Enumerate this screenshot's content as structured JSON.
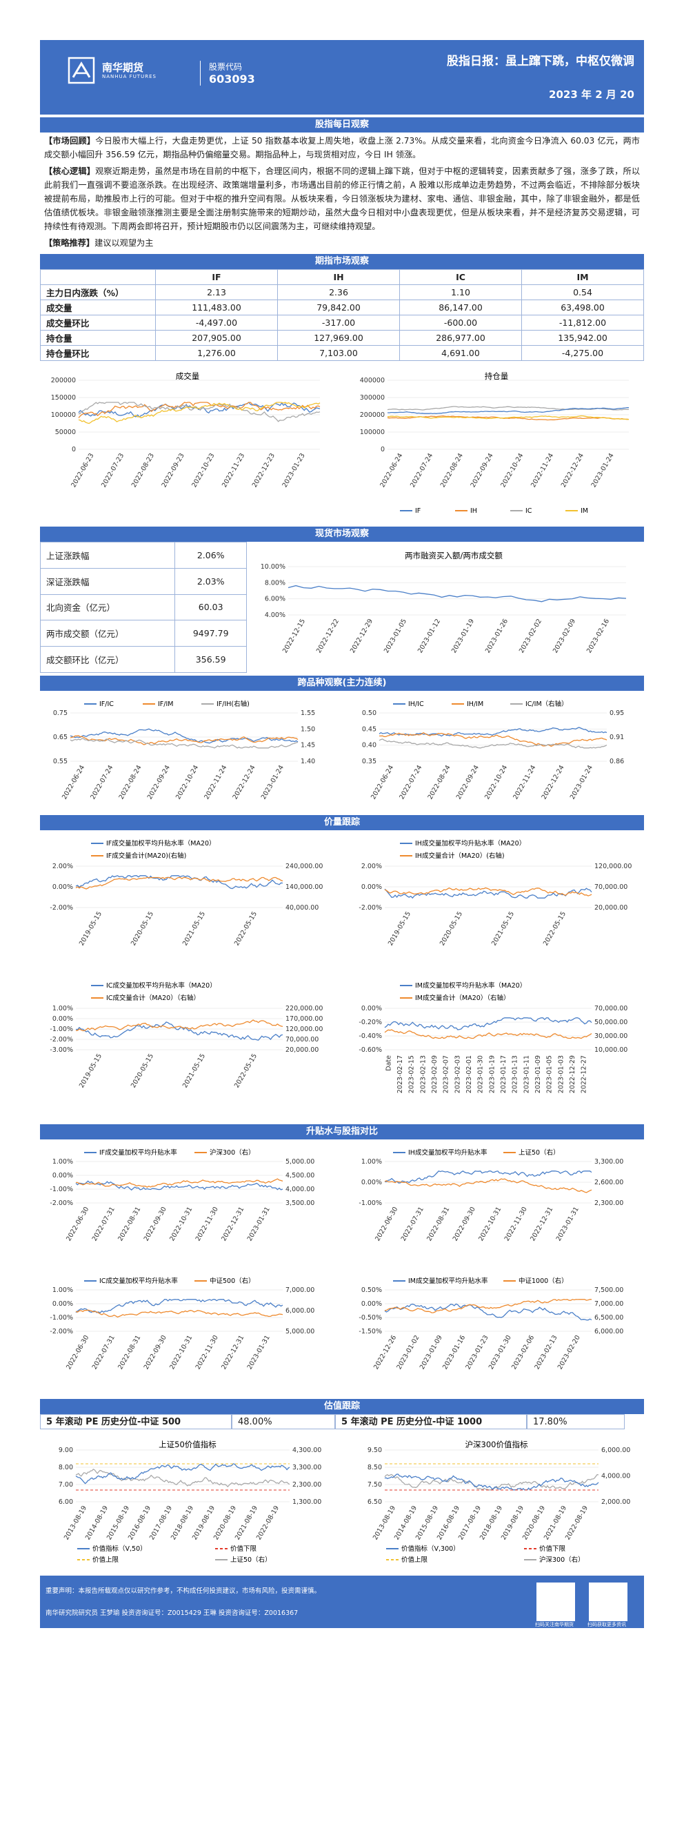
{
  "header": {
    "brand_cn": "南华期货",
    "brand_en": "NANHUA FUTURES",
    "code_label": "股票代码",
    "code_value": "603093",
    "title": "股指日报：虽上蹿下跳，中枢仅微调",
    "date": "2023 年 2 月 20"
  },
  "sections": {
    "daily": "股指每日观察",
    "futures": "期指市场观察",
    "spot": "现货市场观察",
    "variety": "跨品种观察(主力连续)",
    "volprice": "价量跟踪",
    "basis": "升贴水与股指对比",
    "valuation": "估值跟踪"
  },
  "text": {
    "review_tag": "【市场回顾】",
    "review": "今日股市大幅上行，大盘走势更优，上证 50 指数基本收复上周失地，收盘上涨 2.73%。从成交量来看，北向资金今日净流入 60.03 亿元，两市成交额小幅回升 356.59 亿元，期指品种仍偏缩量交易。期指品种上，与现货相对应，今日 IH 领涨。",
    "logic_tag": "【核心逻辑】",
    "logic": "观察近期走势，虽然是市场在目前的中枢下，合理区间内，根据不同的逻辑上蹿下跳，但对于中枢的逻辑转变，因素贡献多了强，涨多了跌，所以此前我们一直强调不要追涨杀跌。在出现经济、政策端增量利多，市场遇出目前的修正行情之前，A 股难以形成单边走势趋势，不过两会临近，不排除部分板块被提前布局，助推股市上行的可能。但对于中枢的推升空间有限。从板块来看，今日领涨板块为建材、家电、通信、非银金融，其中，除了非银金融外，都是低估值绩优板块。非银金融领涨推测主要是全面注册制实施带来的短期炒动，虽然大盘今日相对中小盘表现更优，但是从板块来看，并不是经济复苏交易逻辑，可持续性有待观测。下周两会即将召开，预计短期股市仍以区间震荡为主，可继续维持观望。",
    "strategy_tag": "【策略推荐】",
    "strategy": "建议以观望为主"
  },
  "futures_table": {
    "headers": [
      "",
      "IF",
      "IH",
      "IC",
      "IM"
    ],
    "rows": [
      {
        "label": "主力日内涨跌（%）",
        "v": [
          "2.13",
          "2.36",
          "1.10",
          "0.54"
        ]
      },
      {
        "label": "成交量",
        "v": [
          "111,483.00",
          "79,842.00",
          "86,147.00",
          "63,498.00"
        ]
      },
      {
        "label": "成交量环比",
        "v": [
          "-4,497.00",
          "-317.00",
          "-600.00",
          "-11,812.00"
        ]
      },
      {
        "label": "持仓量",
        "v": [
          "207,905.00",
          "127,969.00",
          "286,977.00",
          "135,942.00"
        ]
      },
      {
        "label": "持仓量环比",
        "v": [
          "1,276.00",
          "7,103.00",
          "4,691.00",
          "-4,275.00"
        ]
      }
    ]
  },
  "spot_table": [
    {
      "label": "上证涨跌幅",
      "value": "2.06%"
    },
    {
      "label": "深证涨跌幅",
      "value": "2.03%"
    },
    {
      "label": "北向资金（亿元）",
      "value": "60.03"
    },
    {
      "label": "两市成交额（亿元）",
      "value": "9497.79"
    },
    {
      "label": "成交额环比（亿元）",
      "value": "356.59"
    }
  ],
  "pe": {
    "left_label": "5 年滚动 PE 历史分位-中证 500",
    "left_value": "48.00%",
    "right_label": "5 年滚动 PE 历史分位-中证 1000",
    "right_value": "17.80%"
  },
  "charts": {
    "volume": {
      "title": "成交量",
      "yticks": [
        "200000",
        "150000",
        "100000",
        "50000",
        "0"
      ],
      "xticks": [
        "2022-06-23",
        "2022-07-23",
        "2022-08-23",
        "2022-09-23",
        "2022-10-23",
        "2022-11-23",
        "2022-12-23",
        "2023-01-23"
      ]
    },
    "oi": {
      "title": "持仓量",
      "yticks": [
        "400000",
        "300000",
        "200000",
        "100000",
        "0"
      ],
      "xticks": [
        "2022-06-24",
        "2022-07-24",
        "2022-08-24",
        "2022-09-24",
        "2022-10-24",
        "2022-11-24",
        "2022-12-24",
        "2023-01-24"
      ]
    },
    "legend4": [
      "IF",
      "IH",
      "IC",
      "IM"
    ],
    "margin": {
      "title": "两市融资买入额/两市成交额",
      "yticks": [
        "10.00%",
        "8.00%",
        "6.00%",
        "4.00%"
      ],
      "xticks": [
        "2022-12-15",
        "2022-12-22",
        "2022-12-29",
        "2023-01-05",
        "2023-01-12",
        "2023-01-19",
        "2023-01-26",
        "2023-02-02",
        "2023-02-09",
        "2023-02-16"
      ]
    },
    "ratio1": {
      "legend": [
        "IF/IC",
        "IF/IM",
        "IF/IH(右轴)"
      ],
      "yl": [
        "0.75",
        "0.65",
        "0.55"
      ],
      "yr": [
        "1.55",
        "1.50",
        "1.45",
        "1.40"
      ],
      "xticks": [
        "2022-06-24",
        "2022-07-24",
        "2022-08-24",
        "2022-09-24",
        "2022-10-24",
        "2022-11-24",
        "2022-12-24",
        "2023-01-24"
      ]
    },
    "ratio2": {
      "legend": [
        "IH/IC",
        "IH/IM",
        "IC/IM（右轴）"
      ],
      "yl": [
        "0.50",
        "0.45",
        "0.40",
        "0.35"
      ],
      "yr": [
        "0.95",
        "0.91",
        "0.86"
      ],
      "xticks": [
        "2022-06-24",
        "2022-07-24",
        "2022-08-24",
        "2022-09-24",
        "2022-10-24",
        "2022-11-24",
        "2022-12-24",
        "2023-01-24"
      ]
    },
    "vp_if": {
      "legend": [
        "IF成交量加权平均升贴水率（MA20）",
        "IF成交量合计(MA20)(右轴)"
      ],
      "yl": [
        "2.00%",
        "0.00%",
        "-2.00%"
      ],
      "yr": [
        "240,000.00",
        "140,000.00",
        "40,000.00"
      ],
      "xticks": [
        "2019-05-15",
        "2020-05-15",
        "2021-05-15",
        "2022-05-15"
      ]
    },
    "vp_ih": {
      "legend": [
        "IH成交量加权平均升贴水率（MA20）",
        "IH成交量合计（MA20）(右轴)"
      ],
      "yl": [
        "2.00%",
        "0.00%",
        "-2.00%"
      ],
      "yr": [
        "120,000.00",
        "70,000.00",
        "20,000.00"
      ],
      "xticks": [
        "2019-05-15",
        "2020-05-15",
        "2021-05-15",
        "2022-05-15"
      ]
    },
    "vp_ic": {
      "legend": [
        "IC成交量加权平均升贴水率（MA20）",
        "IC成交量合计（MA20）（右轴）"
      ],
      "yl": [
        "1.00%",
        "0.00%",
        "-1.00%",
        "-2.00%",
        "-3.00%"
      ],
      "yr": [
        "220,000.00",
        "170,000.00",
        "120,000.00",
        "70,000.00",
        "20,000.00"
      ],
      "xticks": [
        "2019-05-15",
        "2020-05-15",
        "2021-05-15",
        "2022-05-15"
      ]
    },
    "vp_im": {
      "legend": [
        "IM成交量加权平均升贴水率（MA20）",
        "IM成交量合计（MA20）（右轴）"
      ],
      "yl": [
        "0.00%",
        "-0.20%",
        "-0.40%",
        "-0.60%"
      ],
      "yr": [
        "70,000.00",
        "50,000.00",
        "30,000.00",
        "10,000.00"
      ],
      "xticks": [
        "Date",
        "2023-02-17",
        "2023-02-15",
        "2023-02-13",
        "2023-02-09",
        "2023-02-07",
        "2023-02-03",
        "2023-02-01",
        "2023-01-30",
        "2023-01-19",
        "2023-01-17",
        "2023-01-13",
        "2023-01-11",
        "2023-01-09",
        "2023-01-05",
        "2023-01-03",
        "2022-12-29",
        "2022-12-27"
      ]
    },
    "b_if": {
      "legend": [
        "IF成交量加权平均升贴水率",
        "沪深300（右）"
      ],
      "yl": [
        "1.00%",
        "0.00%",
        "-1.00%",
        "-2.00%"
      ],
      "yr": [
        "5,000.00",
        "4,500.00",
        "4,000.00",
        "3,500.00"
      ],
      "xticks": [
        "2022-06-30",
        "2022-07-31",
        "2022-08-31",
        "2022-09-30",
        "2022-10-31",
        "2022-11-30",
        "2022-12-31",
        "2023-01-31"
      ]
    },
    "b_ih": {
      "legend": [
        "IH成交量加权平均升贴水率",
        "上证50（右）"
      ],
      "yl": [
        "1.00%",
        "0.00%",
        "-1.00%"
      ],
      "yr": [
        "3,300.00",
        "2,600.00",
        "2,300.00"
      ],
      "xticks": [
        "2022-06-30",
        "2022-07-31",
        "2022-08-31",
        "2022-09-30",
        "2022-10-31",
        "2022-11-30",
        "2022-12-31",
        "2023-01-31"
      ]
    },
    "b_ic": {
      "legend": [
        "IC成交量加权平均升贴水率",
        "中证500（右）"
      ],
      "yl": [
        "1.00%",
        "0.00%",
        "-1.00%",
        "-2.00%"
      ],
      "yr": [
        "7,000.00",
        "6,000.00",
        "5,000.00"
      ],
      "xticks": [
        "2022-06-30",
        "2022-07-31",
        "2022-08-31",
        "2022-09-30",
        "2022-10-31",
        "2022-11-30",
        "2022-12-31",
        "2023-01-31"
      ]
    },
    "b_im": {
      "legend": [
        "IM成交量加权平均升贴水率",
        "中证1000（右）"
      ],
      "yl": [
        "0.50%",
        "0.00%",
        "-0.50%",
        "-1.50%"
      ],
      "yr": [
        "7,500.00",
        "7,000.00",
        "6,500.00",
        "6,000.00"
      ],
      "xticks": [
        "2022-12-26",
        "2023-01-02",
        "2023-01-09",
        "2023-01-16",
        "2023-01-23",
        "2023-01-30",
        "2023-02-06",
        "2023-02-13",
        "2023-02-20"
      ]
    },
    "v50": {
      "title": "上证50价值指标",
      "legend": [
        "价值指标（V,50）",
        "价值下限",
        "价值上限",
        "上证50（右）"
      ],
      "yl": [
        "9.00",
        "8.00",
        "7.00",
        "6.00"
      ],
      "yr": [
        "4,300.00",
        "3,300.00",
        "2,300.00",
        "1,300.00"
      ],
      "xticks": [
        "2013-08-19",
        "2014-08-19",
        "2015-08-19",
        "2016-08-19",
        "2017-08-19",
        "2018-08-19",
        "2019-08-19",
        "2020-08-19",
        "2021-08-19",
        "2022-08-19"
      ]
    },
    "v300": {
      "title": "沪深300价值指标",
      "legend": [
        "价值指标（V,300）",
        "价值下限",
        "价值上限",
        "沪深300（右）"
      ],
      "yl": [
        "9.50",
        "8.50",
        "7.50",
        "6.50"
      ],
      "yr": [
        "6,000.00",
        "4,000.00",
        "2,000.00"
      ],
      "xticks": [
        "2013-08-19",
        "2014-08-19",
        "2015-08-19",
        "2016-08-19",
        "2017-08-19",
        "2018-08-19",
        "2019-08-19",
        "2020-08-19",
        "2021-08-19",
        "2022-08-19"
      ]
    }
  },
  "footer": {
    "disclaimer": "重要声明：本报告所载观点仅以研究作参考，不构成任何投资建议，市场有风险，投资需谨慎。",
    "author": "南华研究院研究员  王梦瑜  投资咨询证号：Z0015429    王琳  投资咨询证号：Z0016367",
    "qr1": "扫码关注南华期货",
    "qr2": "扫码获取更多资讯"
  },
  "colors": {
    "brand": "#3f6fc2",
    "IF": "#4a7fc8",
    "IH": "#ee8a2e",
    "IC": "#a9a9a9",
    "IM": "#f2c12e"
  }
}
